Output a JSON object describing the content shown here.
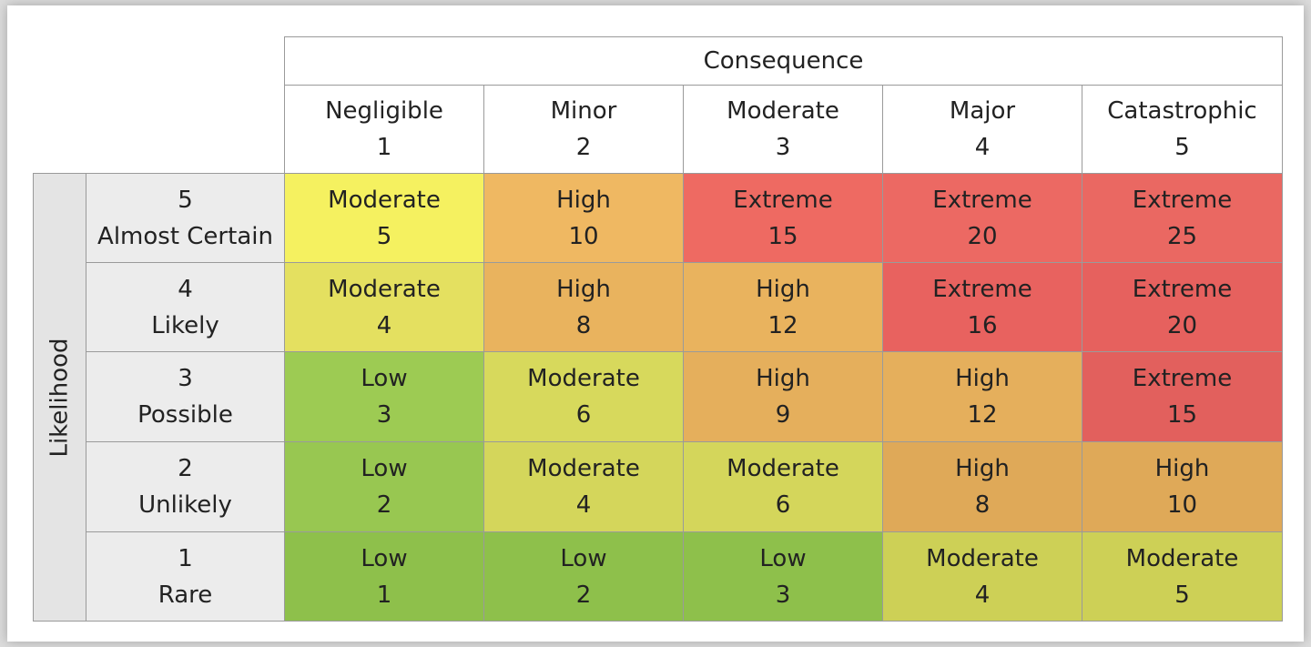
{
  "table": {
    "title": "Consequence",
    "row_axis": "Likelihood",
    "columns": [
      {
        "label": "Negligible",
        "number": 1
      },
      {
        "label": "Minor",
        "number": 2
      },
      {
        "label": "Moderate",
        "number": 3
      },
      {
        "label": "Major",
        "number": 4
      },
      {
        "label": "Catastrophic",
        "number": 5
      }
    ],
    "rows": [
      {
        "number": 5,
        "label": "Almost Certain",
        "cells": [
          {
            "level": "Moderate",
            "score": 5,
            "color": "#f5f160"
          },
          {
            "level": "High",
            "score": 10,
            "color": "#efb862"
          },
          {
            "level": "Extreme",
            "score": 15,
            "color": "#ee6a62"
          },
          {
            "level": "Extreme",
            "score": 20,
            "color": "#ec6963"
          },
          {
            "level": "Extreme",
            "score": 25,
            "color": "#ea6862"
          }
        ]
      },
      {
        "number": 4,
        "label": "Likely",
        "cells": [
          {
            "level": "Moderate",
            "score": 4,
            "color": "#e4e060"
          },
          {
            "level": "High",
            "score": 8,
            "color": "#e9b35e"
          },
          {
            "level": "High",
            "score": 12,
            "color": "#e9b35e"
          },
          {
            "level": "Extreme",
            "score": 16,
            "color": "#e8625f"
          },
          {
            "level": "Extreme",
            "score": 20,
            "color": "#e6615e"
          }
        ]
      },
      {
        "number": 3,
        "label": "Possible",
        "cells": [
          {
            "level": "Low",
            "score": 3,
            "color": "#9dcb53"
          },
          {
            "level": "Moderate",
            "score": 6,
            "color": "#d7d95c"
          },
          {
            "level": "High",
            "score": 9,
            "color": "#e5af5c"
          },
          {
            "level": "High",
            "score": 12,
            "color": "#e5af5c"
          },
          {
            "level": "Extreme",
            "score": 15,
            "color": "#e2605d"
          }
        ]
      },
      {
        "number": 2,
        "label": "Unlikely",
        "cells": [
          {
            "level": "Low",
            "score": 2,
            "color": "#98c751"
          },
          {
            "level": "Moderate",
            "score": 4,
            "color": "#d4d65b"
          },
          {
            "level": "Moderate",
            "score": 6,
            "color": "#d4d65b"
          },
          {
            "level": "High",
            "score": 8,
            "color": "#dfa958"
          },
          {
            "level": "High",
            "score": 10,
            "color": "#dfa958"
          }
        ]
      },
      {
        "number": 1,
        "label": "Rare",
        "cells": [
          {
            "level": "Low",
            "score": 1,
            "color": "#8ec04b"
          },
          {
            "level": "Low",
            "score": 2,
            "color": "#8ec04b"
          },
          {
            "level": "Low",
            "score": 3,
            "color": "#8ec04b"
          },
          {
            "level": "Moderate",
            "score": 4,
            "color": "#cdd056"
          },
          {
            "level": "Moderate",
            "score": 5,
            "color": "#cdd056"
          }
        ]
      }
    ]
  }
}
